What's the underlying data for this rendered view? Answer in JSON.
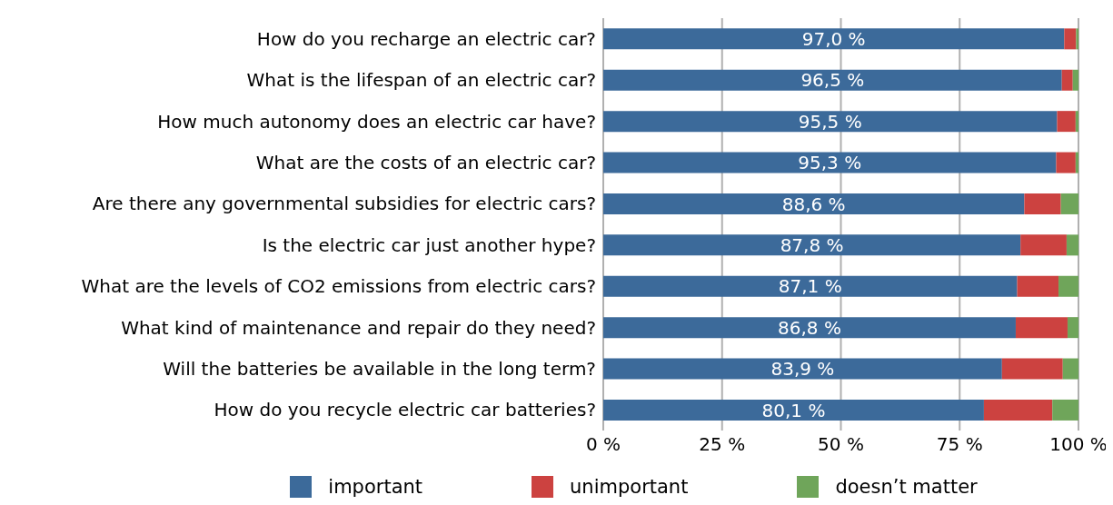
{
  "chart_data": {
    "type": "bar",
    "orientation": "horizontal",
    "stacked": true,
    "categories": [
      "How do you recharge an electric car?",
      "What is the lifespan of an electric car?",
      "How much autonomy does an electric car have?",
      "What are the costs of an electric car?",
      "Are there any governmental subsidies for electric cars?",
      "Is the electric car just another hype?",
      "What are the levels of CO2 emissions from electric cars?",
      "What kind of maintenance and repair do they need?",
      "Will the batteries be available in the long term?",
      "How do you recycle electric car batteries?"
    ],
    "series": [
      {
        "name": "important",
        "color": "#3c6a9a",
        "values": [
          97.0,
          96.5,
          95.5,
          95.3,
          88.6,
          87.8,
          87.1,
          86.8,
          83.9,
          80.1
        ],
        "value_labels": [
          "97,0 %",
          "96,5 %",
          "95,5 %",
          "95,3 %",
          "88,6 %",
          "87,8 %",
          "87,1 %",
          "86,8 %",
          "83,9 %",
          "80,1 %"
        ]
      },
      {
        "name": "unimportant",
        "color": "#cc4240",
        "values": [
          2.5,
          2.3,
          3.9,
          4.1,
          7.7,
          9.7,
          8.7,
          10.9,
          12.8,
          14.4
        ]
      },
      {
        "name": "doesn’t matter",
        "color": "#6fa55a",
        "values": [
          0.5,
          1.2,
          0.6,
          0.6,
          3.7,
          2.5,
          4.2,
          2.3,
          3.3,
          5.5
        ]
      }
    ],
    "xlim": [
      0,
      100
    ],
    "xticks": [
      {
        "value": 0,
        "label": "0 %"
      },
      {
        "value": 25,
        "label": "25 %"
      },
      {
        "value": 50,
        "label": "50 %"
      },
      {
        "value": 75,
        "label": "75 %"
      },
      {
        "value": 100,
        "label": "100 %"
      }
    ],
    "grid": "x",
    "legend": "bottom"
  }
}
